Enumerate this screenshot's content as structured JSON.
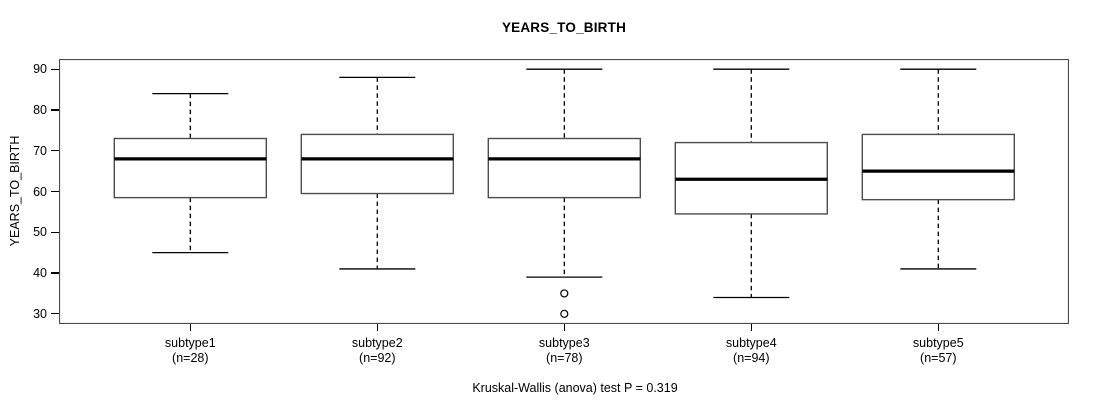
{
  "chart_data": {
    "type": "boxplot",
    "title": "YEARS_TO_BIRTH",
    "ylabel": "YEARS_TO_BIRTH",
    "xlabel": "",
    "ylim": [
      27.5,
      92.5
    ],
    "yticks": [
      30,
      40,
      50,
      60,
      70,
      80,
      90
    ],
    "grid": false,
    "annotation": "Kruskal-Wallis (anova) test P = 0.319",
    "groups": [
      {
        "label": "subtype1",
        "n_label": "(n=28)",
        "n": 28,
        "whisker_low": 45,
        "q1": 58.5,
        "median": 68,
        "q3": 73,
        "whisker_high": 84,
        "outliers": []
      },
      {
        "label": "subtype2",
        "n_label": "(n=92)",
        "n": 92,
        "whisker_low": 41,
        "q1": 59.5,
        "median": 68,
        "q3": 74,
        "whisker_high": 88,
        "outliers": []
      },
      {
        "label": "subtype3",
        "n_label": "(n=78)",
        "n": 78,
        "whisker_low": 39,
        "q1": 58.5,
        "median": 68,
        "q3": 73,
        "whisker_high": 90,
        "outliers": [
          35,
          30
        ]
      },
      {
        "label": "subtype4",
        "n_label": "(n=94)",
        "n": 94,
        "whisker_low": 34,
        "q1": 54.5,
        "median": 63,
        "q3": 72,
        "whisker_high": 90,
        "outliers": []
      },
      {
        "label": "subtype5",
        "n_label": "(n=57)",
        "n": 57,
        "whisker_low": 41,
        "q1": 58,
        "median": 65,
        "q3": 74,
        "whisker_high": 90,
        "outliers": []
      }
    ],
    "colors": {
      "line": "#000000",
      "box_border": "#4d4d4d",
      "frame": "#4d4d4d",
      "box_fill": "#ffffff",
      "background": "#ffffff"
    }
  }
}
